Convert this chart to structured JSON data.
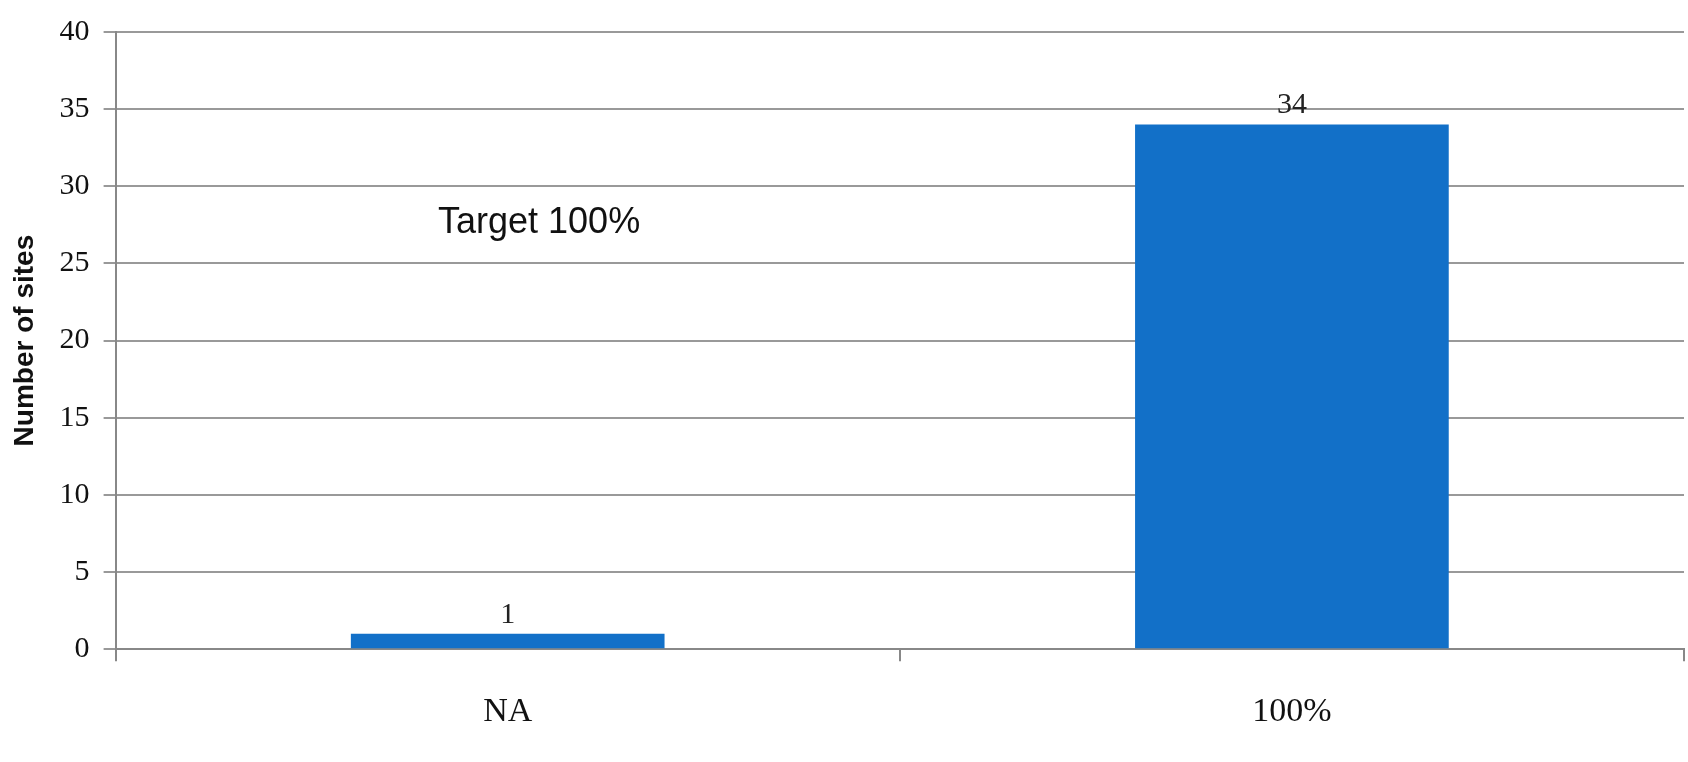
{
  "chart_data": {
    "type": "bar",
    "ylabel": "Number of sites",
    "categories": [
      "NA",
      "100%"
    ],
    "values": [
      1,
      34
    ],
    "color": "#1270c8",
    "ylim": [
      0,
      40
    ],
    "yticks": [
      0,
      5,
      10,
      15,
      20,
      25,
      30,
      35,
      40
    ],
    "grid": "y",
    "data_labels": true,
    "legend": false,
    "annotations": [
      "Target 100%"
    ]
  }
}
